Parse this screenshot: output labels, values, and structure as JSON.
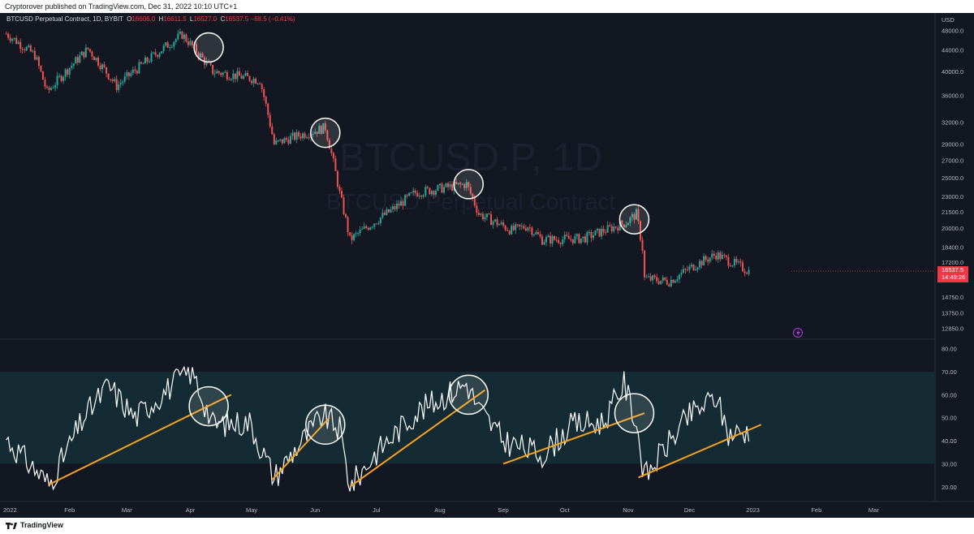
{
  "publisher_line": "Cryptorover published on TradingView.com, Dec 31, 2022 10:10 UTC+1",
  "symbol_line": "BTCUSD Perpetual Contract, 1D, BYBIT",
  "ohlc": {
    "o_label": "O",
    "o": "16606.0",
    "h_label": "H",
    "h": "16611.5",
    "l_label": "L",
    "l": "16527.0",
    "c_label": "C",
    "c": "16537.5",
    "change": "−68.5 (−0.41%)"
  },
  "watermark": {
    "line1": "BTCUSD.P, 1D",
    "line2": "BTCUSD Perpetual Contract"
  },
  "price_axis": {
    "currency": "USD",
    "ticks": [
      "48000.0",
      "44000.0",
      "40000.0",
      "36000.0",
      "32000.0",
      "29000.0",
      "27000.0",
      "25000.0",
      "23000.0",
      "21500.0",
      "20000.0",
      "18400.0",
      "17200.0",
      "14750.0",
      "13750.0",
      "12850.0"
    ]
  },
  "last_price": {
    "value": "16537.5",
    "countdown": "14:49:26",
    "color": "#f23645"
  },
  "rsi_axis": {
    "ticks": [
      "80.00",
      "70.00",
      "60.00",
      "50.00",
      "40.00",
      "30.00",
      "20.00"
    ]
  },
  "time_axis": {
    "labels": [
      "2022",
      "Feb",
      "Mar",
      "Apr",
      "May",
      "Jun",
      "Jul",
      "Aug",
      "Sep",
      "Oct",
      "Nov",
      "Dec",
      "2023",
      "Feb",
      "Mar"
    ]
  },
  "footer_brand": "TradingView",
  "colors": {
    "up": "#26a69a",
    "down": "#ef5350",
    "rsi_line": "#ffffff",
    "trendline": "#f7a21b",
    "rsi_band": "#142b33",
    "background": "#131722"
  },
  "chart_data": {
    "type": "line",
    "y_scale": "log",
    "price_series": {
      "name": "BTCUSD.P",
      "dates": [
        "2022-01-01",
        "2022-01-15",
        "2022-01-21",
        "2022-02-10",
        "2022-02-24",
        "2022-03-28",
        "2022-04-12",
        "2022-05-05",
        "2022-05-12",
        "2022-05-20",
        "2022-06-06",
        "2022-06-13",
        "2022-06-18",
        "2022-07-08",
        "2022-07-20",
        "2022-08-14",
        "2022-08-20",
        "2022-09-05",
        "2022-09-13",
        "2022-09-20",
        "2022-10-10",
        "2022-10-31",
        "2022-11-05",
        "2022-11-08",
        "2022-11-09",
        "2022-11-21",
        "2022-12-05",
        "2022-12-14",
        "2022-12-30"
      ],
      "close": [
        47300,
        43000,
        36500,
        44200,
        37500,
        47100,
        40000,
        38500,
        29000,
        29800,
        31200,
        23300,
        19000,
        21600,
        23400,
        24300,
        21300,
        19800,
        20200,
        19000,
        19100,
        20500,
        21300,
        18300,
        16000,
        15800,
        17100,
        17800,
        16537
      ]
    },
    "rsi_series": {
      "name": "RSI",
      "dates": [
        "2022-01-01",
        "2022-01-08",
        "2022-01-22",
        "2022-02-08",
        "2022-02-20",
        "2022-03-05",
        "2022-03-28",
        "2022-04-02",
        "2022-04-12",
        "2022-04-30",
        "2022-05-12",
        "2022-05-22",
        "2022-06-05",
        "2022-06-13",
        "2022-06-18",
        "2022-07-01",
        "2022-07-20",
        "2022-08-14",
        "2022-08-20",
        "2022-09-01",
        "2022-09-20",
        "2022-10-05",
        "2022-10-20",
        "2022-10-30",
        "2022-11-05",
        "2022-11-09",
        "2022-11-20",
        "2022-12-01",
        "2022-12-14",
        "2022-12-20",
        "2022-12-30"
      ],
      "values": [
        41,
        34,
        21,
        50,
        64,
        50,
        68,
        70,
        47,
        48,
        24,
        36,
        51,
        45,
        20,
        35,
        52,
        65,
        54,
        40,
        34,
        47,
        48,
        65,
        48,
        24,
        38,
        51,
        59,
        43,
        44
      ]
    },
    "trendlines": [
      {
        "x": [
          "2022-01-22",
          "2022-04-21"
        ],
        "y": [
          21,
          60
        ]
      },
      {
        "x": [
          "2022-05-11",
          "2022-06-08"
        ],
        "y": [
          23,
          50
        ]
      },
      {
        "x": [
          "2022-06-18",
          "2022-08-23"
        ],
        "y": [
          20,
          62
        ]
      },
      {
        "x": [
          "2022-09-01",
          "2022-11-09"
        ],
        "y": [
          30,
          52
        ]
      },
      {
        "x": [
          "2022-11-06",
          "2023-01-05"
        ],
        "y": [
          24,
          47
        ]
      }
    ],
    "highlight_circles": [
      {
        "date": "2022-04-10",
        "price": 44500,
        "rsi": 55
      },
      {
        "date": "2022-06-06",
        "price": 30500,
        "rsi": 47
      },
      {
        "date": "2022-08-15",
        "price": 24300,
        "rsi": 60
      },
      {
        "date": "2022-11-04",
        "price": 20800,
        "rsi": 52
      }
    ],
    "rsi_band": [
      30,
      70
    ],
    "rsi_ylim": [
      15,
      82
    ],
    "price_ylim": [
      12500,
      50000
    ],
    "x_range": [
      "2021-12-29",
      "2023-03-31"
    ],
    "grid": false
  }
}
